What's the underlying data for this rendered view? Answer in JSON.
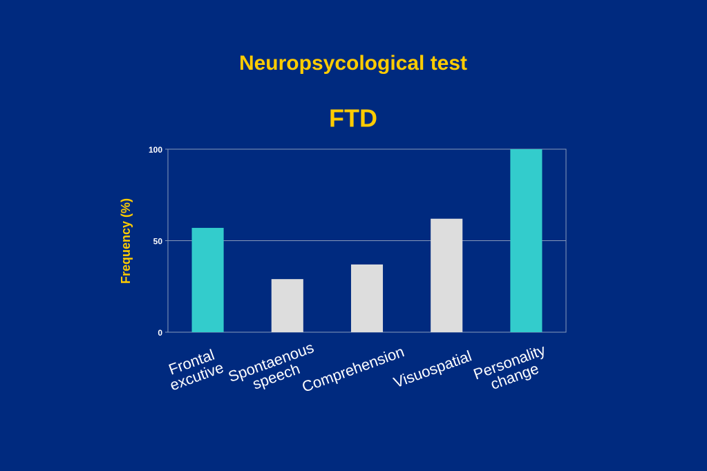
{
  "chart_data": {
    "type": "bar",
    "title": "Neuropsycological test",
    "subtitle": "FTD",
    "y_label": "Frequency (%)",
    "categories": [
      "Frontal\nexcutive",
      "Spontaenous\nspeech",
      "Comprehension",
      "Visuospatial",
      "Personality\nchange"
    ],
    "values": [
      57,
      29,
      37,
      62,
      100
    ],
    "colors": [
      "#33cccc",
      "#dddddd",
      "#dddddd",
      "#dddddd",
      "#33cccc"
    ],
    "ylim": [
      0,
      100
    ],
    "yticks": [
      0,
      50,
      100
    ],
    "grid": true
  }
}
